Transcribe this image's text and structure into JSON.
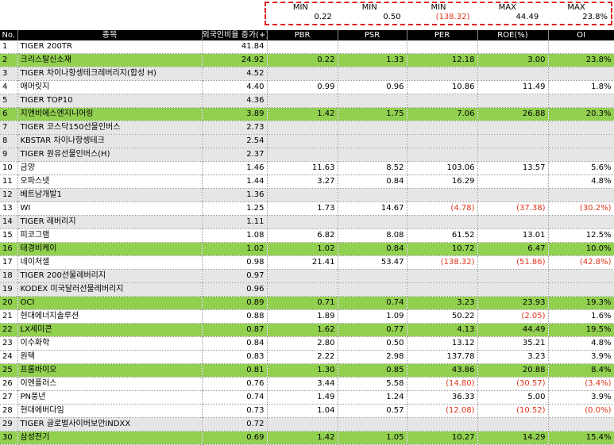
{
  "summary": {
    "kinds": [
      "MIN",
      "MIN",
      "MIN",
      "MAX",
      "MAX"
    ],
    "values": [
      "0.22",
      "0.50",
      "(138.32)",
      "44.49",
      "23.8%"
    ]
  },
  "headers": [
    "No.",
    "종목",
    "외국인비율 증가(+)",
    "PBR",
    "PSR",
    "PER",
    "ROE(%)",
    "OI"
  ],
  "rows": [
    {
      "no": "1",
      "name": "TIGER 200TR",
      "foreign": "41.84",
      "pbr": "",
      "psr": "",
      "per": "",
      "roe": "",
      "oi": "",
      "style": "plain"
    },
    {
      "no": "2",
      "name": "크리스탈신소재",
      "foreign": "24.92",
      "pbr": "0.22",
      "psr": "1.33",
      "per": "12.18",
      "roe": "3.00",
      "oi": "23.8%",
      "style": "green"
    },
    {
      "no": "3",
      "name": "TIGER 차이나항셍테크레버리지(합성 H)",
      "foreign": "4.52",
      "pbr": "",
      "psr": "",
      "per": "",
      "roe": "",
      "oi": "",
      "style": "gray"
    },
    {
      "no": "4",
      "name": "애머릿지",
      "foreign": "4.40",
      "pbr": "0.99",
      "psr": "0.96",
      "per": "10.86",
      "roe": "11.49",
      "oi": "1.8%",
      "style": "plain"
    },
    {
      "no": "5",
      "name": "TIGER TOP10",
      "foreign": "4.36",
      "pbr": "",
      "psr": "",
      "per": "",
      "roe": "",
      "oi": "",
      "style": "gray"
    },
    {
      "no": "6",
      "name": "지앤비에스엔지니어링",
      "foreign": "3.89",
      "pbr": "1.42",
      "psr": "1.75",
      "per": "7.06",
      "roe": "26.88",
      "oi": "20.3%",
      "style": "green"
    },
    {
      "no": "7",
      "name": "TIGER 코스닥150선물인버스",
      "foreign": "2.73",
      "pbr": "",
      "psr": "",
      "per": "",
      "roe": "",
      "oi": "",
      "style": "gray"
    },
    {
      "no": "8",
      "name": "KBSTAR 차이나항셍테크",
      "foreign": "2.54",
      "pbr": "",
      "psr": "",
      "per": "",
      "roe": "",
      "oi": "",
      "style": "gray"
    },
    {
      "no": "9",
      "name": "TIGER 원유선물인버스(H)",
      "foreign": "2.37",
      "pbr": "",
      "psr": "",
      "per": "",
      "roe": "",
      "oi": "",
      "style": "gray"
    },
    {
      "no": "10",
      "name": "금양",
      "foreign": "1.46",
      "pbr": "11.63",
      "psr": "8.52",
      "per": "103.06",
      "roe": "13.57",
      "oi": "5.6%",
      "style": "plain"
    },
    {
      "no": "11",
      "name": "오파스넷",
      "foreign": "1.44",
      "pbr": "3.27",
      "psr": "0.84",
      "per": "16.29",
      "roe": "",
      "oi": "4.8%",
      "style": "plain"
    },
    {
      "no": "12",
      "name": "베트남개발1",
      "foreign": "1.36",
      "pbr": "",
      "psr": "",
      "per": "",
      "roe": "",
      "oi": "",
      "style": "gray"
    },
    {
      "no": "13",
      "name": "WI",
      "foreign": "1.25",
      "pbr": "1.73",
      "psr": "14.67",
      "per": "(4.78)",
      "roe": "(37.38)",
      "oi": "(30.2%)",
      "style": "plain"
    },
    {
      "no": "14",
      "name": "TIGER 레버리지",
      "foreign": "1.11",
      "pbr": "",
      "psr": "",
      "per": "",
      "roe": "",
      "oi": "",
      "style": "gray"
    },
    {
      "no": "15",
      "name": "피코그램",
      "foreign": "1.08",
      "pbr": "6.82",
      "psr": "8.08",
      "per": "61.52",
      "roe": "13.01",
      "oi": "12.5%",
      "style": "plain"
    },
    {
      "no": "16",
      "name": "태경비케이",
      "foreign": "1.02",
      "pbr": "1.02",
      "psr": "0.84",
      "per": "10.72",
      "roe": "6.47",
      "oi": "10.0%",
      "style": "green"
    },
    {
      "no": "17",
      "name": "네이처셀",
      "foreign": "0.98",
      "pbr": "21.41",
      "psr": "53.47",
      "per": "(138.32)",
      "roe": "(51.86)",
      "oi": "(42.8%)",
      "style": "plain"
    },
    {
      "no": "18",
      "name": "TIGER 200선물레버리지",
      "foreign": "0.97",
      "pbr": "",
      "psr": "",
      "per": "",
      "roe": "",
      "oi": "",
      "style": "gray"
    },
    {
      "no": "19",
      "name": "KODEX 미국달러선물레버리지",
      "foreign": "0.96",
      "pbr": "",
      "psr": "",
      "per": "",
      "roe": "",
      "oi": "",
      "style": "gray"
    },
    {
      "no": "20",
      "name": "OCI",
      "foreign": "0.89",
      "pbr": "0.71",
      "psr": "0.74",
      "per": "3.23",
      "roe": "23.93",
      "oi": "19.3%",
      "style": "green"
    },
    {
      "no": "21",
      "name": "현대에너지솔루션",
      "foreign": "0.88",
      "pbr": "1.89",
      "psr": "1.09",
      "per": "50.22",
      "roe": "(2.05)",
      "oi": "1.6%",
      "style": "plain"
    },
    {
      "no": "22",
      "name": "LX세미콘",
      "foreign": "0.87",
      "pbr": "1.62",
      "psr": "0.77",
      "per": "4.13",
      "roe": "44.49",
      "oi": "19.5%",
      "style": "green"
    },
    {
      "no": "23",
      "name": "이수화학",
      "foreign": "0.84",
      "pbr": "2.80",
      "psr": "0.50",
      "per": "13.12",
      "roe": "35.21",
      "oi": "4.8%",
      "style": "plain"
    },
    {
      "no": "24",
      "name": "원텍",
      "foreign": "0.83",
      "pbr": "2.22",
      "psr": "2.98",
      "per": "137.78",
      "roe": "3.23",
      "oi": "3.9%",
      "style": "plain"
    },
    {
      "no": "25",
      "name": "프롬바이오",
      "foreign": "0.81",
      "pbr": "1.30",
      "psr": "0.85",
      "per": "43.86",
      "roe": "20.88",
      "oi": "8.4%",
      "style": "green"
    },
    {
      "no": "26",
      "name": "이엔플러스",
      "foreign": "0.76",
      "pbr": "3.44",
      "psr": "5.58",
      "per": "(14.80)",
      "roe": "(30.57)",
      "oi": "(3.4%)",
      "style": "plain"
    },
    {
      "no": "27",
      "name": "PN풍년",
      "foreign": "0.74",
      "pbr": "1.49",
      "psr": "1.24",
      "per": "36.33",
      "roe": "5.00",
      "oi": "3.9%",
      "style": "plain"
    },
    {
      "no": "28",
      "name": "현대에버다임",
      "foreign": "0.73",
      "pbr": "1.04",
      "psr": "0.57",
      "per": "(12.08)",
      "roe": "(10.52)",
      "oi": "(0.0%)",
      "style": "plain"
    },
    {
      "no": "29",
      "name": "TIGER 글로벌사이버보안INDXX",
      "foreign": "0.72",
      "pbr": "",
      "psr": "",
      "per": "",
      "roe": "",
      "oi": "",
      "style": "gray"
    },
    {
      "no": "30",
      "name": "삼성전기",
      "foreign": "0.69",
      "pbr": "1.42",
      "psr": "1.05",
      "per": "10.27",
      "roe": "14.29",
      "oi": "15.4%",
      "style": "green"
    }
  ]
}
